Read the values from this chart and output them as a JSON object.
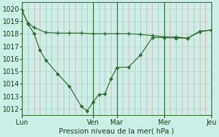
{
  "background_color": "#cceee6",
  "grid_color_h": "#b8d8d0",
  "grid_color_v_minor": "#d4a8a8",
  "line_color": "#2d6e2d",
  "xlabel": "Pression niveau de la mer( hPa )",
  "ylim": [
    1011.5,
    1020.5
  ],
  "yticks": [
    1012,
    1013,
    1014,
    1015,
    1016,
    1017,
    1018,
    1019,
    1020
  ],
  "xtick_labels": [
    "Lun",
    "Ven",
    "Mar",
    "Mer",
    "Jeu"
  ],
  "xtick_positions": [
    0,
    0.375,
    0.5,
    0.75,
    1.0
  ],
  "vline_positions": [
    0,
    0.375,
    0.5,
    0.75,
    1.0
  ],
  "series1_x": [
    0.0,
    0.031,
    0.063,
    0.125,
    0.188,
    0.25,
    0.313,
    0.375,
    0.438,
    0.5,
    0.563,
    0.625,
    0.688,
    0.75,
    0.813,
    0.875,
    0.938,
    1.0
  ],
  "series1_y": [
    1019.8,
    1018.85,
    1018.5,
    1018.1,
    1018.05,
    1018.05,
    1018.05,
    1018.0,
    1018.0,
    1018.0,
    1018.0,
    1017.95,
    1017.85,
    1017.75,
    1017.75,
    1017.65,
    1018.15,
    1018.3
  ],
  "series2_x": [
    0.0,
    0.031,
    0.063,
    0.094,
    0.125,
    0.188,
    0.25,
    0.313,
    0.344,
    0.375,
    0.406,
    0.438,
    0.469,
    0.5,
    0.563,
    0.625,
    0.688,
    0.75,
    0.813,
    0.875,
    0.938,
    1.0
  ],
  "series2_y": [
    1019.85,
    1018.8,
    1018.0,
    1016.7,
    1015.9,
    1014.8,
    1013.8,
    1012.2,
    1011.85,
    1012.55,
    1013.15,
    1013.2,
    1014.4,
    1015.3,
    1015.35,
    1016.3,
    1017.7,
    1017.7,
    1017.65,
    1017.65,
    1018.2,
    1018.3
  ]
}
